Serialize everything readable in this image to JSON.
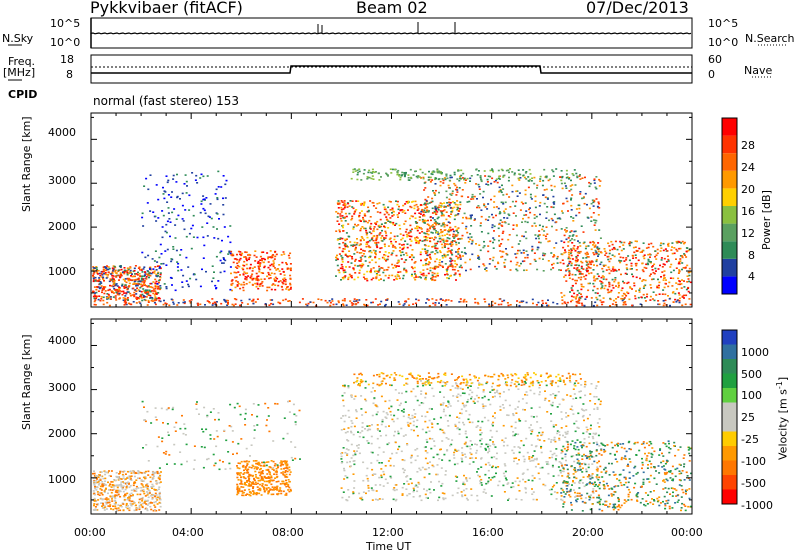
{
  "header": {
    "station": "Pykkvibaer (fitACF)",
    "beam": "Beam 02",
    "date": "07/Dec/2013"
  },
  "panel_labels": {
    "nsky": "N.Sky",
    "nsearch": "N.Search",
    "freq": "Freq.",
    "freq_unit": "[MHz]",
    "nave": "Nave",
    "cpid": "CPID",
    "cpid_text": "normal (fast stereo) 153"
  },
  "summary_axes": {
    "noise_left_ticks": [
      "10^5",
      "10^0"
    ],
    "noise_right_ticks": [
      "10^5",
      "10^0"
    ],
    "freq_ticks": [
      "18",
      "8"
    ],
    "nave_ticks": [
      "60",
      "0"
    ]
  },
  "colors": {
    "power_scale": [
      "#0000ff",
      "#2040a0",
      "#2e8b57",
      "#5aa060",
      "#8ac040",
      "#ffd000",
      "#ff9900",
      "#ff6600",
      "#ff3300",
      "#ff0000"
    ],
    "velocity_scale": [
      "#ff0000",
      "#ff4400",
      "#ff7700",
      "#ff9900",
      "#ffcc00",
      "#c8c8c0",
      "#c8c8c0",
      "#60d040",
      "#20a040",
      "#2e8b57",
      "#3070a0",
      "#2040c0"
    ]
  },
  "chart_data": [
    {
      "type": "heatmap",
      "name": "Power",
      "xlabel": "",
      "ylabel": "Slant Range [km]",
      "xlim": [
        "00:00",
        "24:00"
      ],
      "ylim": [
        180,
        4600
      ],
      "yticks": [
        "1000",
        "2000",
        "3000",
        "4000"
      ],
      "colorbar": {
        "label": "Power [dB]",
        "ticks": [
          "4",
          "8",
          "12",
          "16",
          "20",
          "24",
          "28"
        ],
        "range": [
          0,
          30
        ]
      }
    },
    {
      "type": "heatmap",
      "name": "Velocity",
      "xlabel": "Time UT",
      "ylabel": "Slant Range [km]",
      "xlim": [
        "00:00",
        "24:00"
      ],
      "ylim": [
        180,
        4600
      ],
      "xticks": [
        "00:00",
        "04:00",
        "08:00",
        "12:00",
        "16:00",
        "20:00",
        "00:00"
      ],
      "yticks": [
        "1000",
        "2000",
        "3000",
        "4000"
      ],
      "colorbar": {
        "label": "Velocity",
        "label_unit": "[m s",
        "label_exp": "-1",
        "label_close": "]",
        "ticks": [
          "1000",
          "500",
          "100",
          "25",
          "-25",
          "-100",
          "-500",
          "-1000"
        ]
      }
    }
  ]
}
